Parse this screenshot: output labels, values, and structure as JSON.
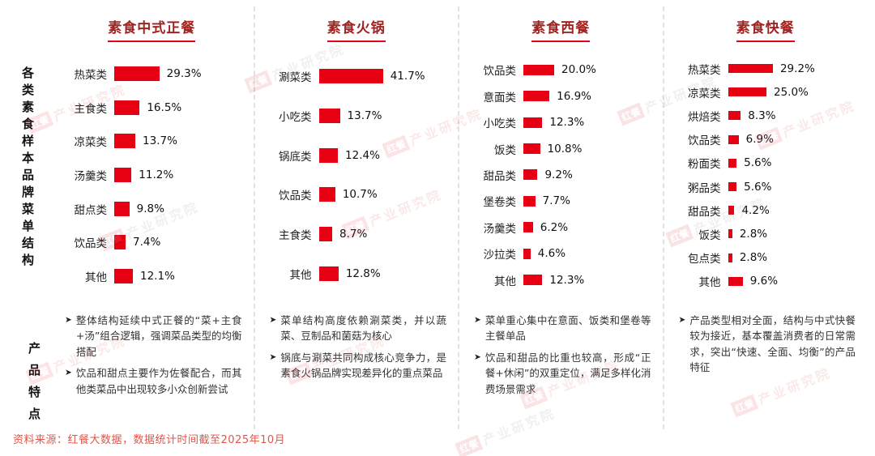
{
  "page": {
    "source": "资料来源：红餐大数据，数据统计时间截至2025年10月"
  },
  "side_labels": {
    "charts": "各类素食样本品牌菜单结构",
    "features": "产品特点"
  },
  "bullet": "➤",
  "watermark": {
    "logo": "红餐",
    "text": "产业研究院"
  },
  "colors": {
    "bar": "#e60012",
    "accent": "#e60012",
    "title": "#9e2321",
    "source": "#e0564a"
  },
  "chart_data": [
    {
      "type": "bar",
      "orientation": "horizontal",
      "title": "素食中式正餐",
      "unit": "%",
      "categories": [
        "热菜类",
        "主食类",
        "凉菜类",
        "汤羹类",
        "甜点类",
        "饮品类",
        "其他"
      ],
      "values": [
        29.3,
        16.5,
        13.7,
        11.2,
        9.8,
        7.4,
        12.1
      ],
      "features": [
        "整体结构延续中式正餐的“菜+主食+汤”组合逻辑，强调菜品类型的均衡搭配",
        "饮品和甜点主要作为佐餐配合，而其他类菜品中出现较多小众创新尝试"
      ]
    },
    {
      "type": "bar",
      "orientation": "horizontal",
      "title": "素食火锅",
      "unit": "%",
      "categories": [
        "涮菜类",
        "小吃类",
        "锅底类",
        "饮品类",
        "主食类",
        "其他"
      ],
      "values": [
        41.7,
        13.7,
        12.4,
        10.7,
        8.7,
        12.8
      ],
      "features": [
        "菜单结构高度依赖涮菜类，并以蔬菜、豆制品和菌菇为核心",
        "锅底与涮菜共同构成核心竞争力，是素食火锅品牌实现差异化的重点菜品"
      ]
    },
    {
      "type": "bar",
      "orientation": "horizontal",
      "title": "素食西餐",
      "unit": "%",
      "categories": [
        "饮品类",
        "意面类",
        "小吃类",
        "饭类",
        "甜品类",
        "堡卷类",
        "汤羹类",
        "沙拉类",
        "其他"
      ],
      "values": [
        20.0,
        16.9,
        12.3,
        10.8,
        9.2,
        7.7,
        6.2,
        4.6,
        12.3
      ],
      "features": [
        "菜单重心集中在意面、饭类和堡卷等主餐单品",
        "饮品和甜品的比重也较高，形成“正餐+休闲”的双重定位，满足多样化消费场景需求"
      ]
    },
    {
      "type": "bar",
      "orientation": "horizontal",
      "title": "素食快餐",
      "unit": "%",
      "categories": [
        "热菜类",
        "凉菜类",
        "烘焙类",
        "饮品类",
        "粉面类",
        "粥品类",
        "甜品类",
        "饭类",
        "包点类",
        "其他"
      ],
      "values": [
        29.2,
        25.0,
        8.3,
        6.9,
        5.6,
        5.6,
        4.2,
        2.8,
        2.8,
        9.6
      ],
      "features": [
        "产品类型相对全面，结构与中式快餐较为接近，基本覆盖消费者的日常需求，突出“快速、全面、均衡”的产品特征"
      ]
    }
  ]
}
